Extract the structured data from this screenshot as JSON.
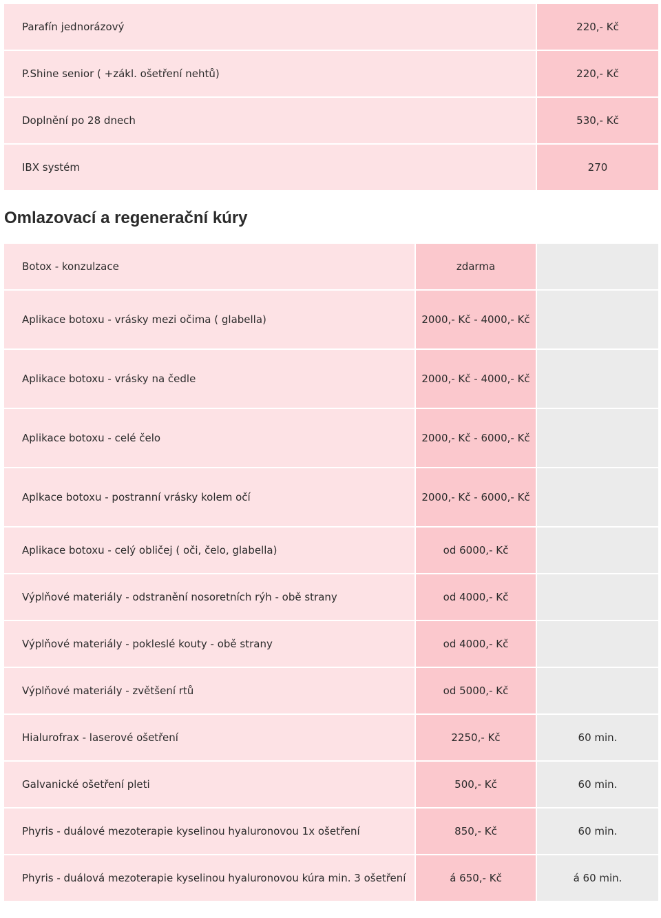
{
  "top_table": {
    "rows": [
      {
        "name": "Parafín jednorázový",
        "price": "220,- Kč"
      },
      {
        "name": "P.Shine senior ( +zákl. ošetření nehtů)",
        "price": "220,- Kč"
      },
      {
        "name": "Doplnění po 28 dnech",
        "price": "530,- Kč"
      },
      {
        "name": "IBX systém",
        "price": "270"
      }
    ]
  },
  "section": {
    "title": "Omlazovací a regenerační kúry"
  },
  "main_table": {
    "rows": [
      {
        "name": "Botox - konzulzace",
        "price": "zdarma",
        "time": ""
      },
      {
        "name": "Aplikace botoxu - vrásky mezi očima ( glabella)",
        "price": "2000,- Kč - 4000,- Kč",
        "time": ""
      },
      {
        "name": "Aplikace botoxu - vrásky na čedle",
        "price": "2000,- Kč - 4000,- Kč",
        "time": ""
      },
      {
        "name": "Aplikace botoxu - celé čelo",
        "price": "2000,- Kč - 6000,- Kč",
        "time": ""
      },
      {
        "name": "Aplkace botoxu - postranní vrásky kolem očí",
        "price": "2000,- Kč - 6000,- Kč",
        "time": ""
      },
      {
        "name": "Aplikace botoxu - celý obličej ( oči, čelo, glabella)",
        "price": "od 6000,- Kč",
        "time": ""
      },
      {
        "name": "Výplňové materiály - odstranění nosoretních rýh - obě strany",
        "price": "od 4000,- Kč",
        "time": ""
      },
      {
        "name": "Výplňové materiály - pokleslé kouty - obě strany",
        "price": "od 4000,- Kč",
        "time": ""
      },
      {
        "name": "Výplňové materiály - zvětšení rtů",
        "price": "od 5000,- Kč",
        "time": ""
      },
      {
        "name": "Hialurofrax - laserové ošetření",
        "price": "2250,- Kč",
        "time": "60 min."
      },
      {
        "name": "Galvanické ošetření pleti",
        "price": "500,- Kč",
        "time": "60 min."
      },
      {
        "name": "Phyris - duálové mezoterapie kyselinou hyaluronovou 1x ošetření",
        "price": "850,- Kč",
        "time": "60 min."
      },
      {
        "name": "Phyris - duálová mezoterapie kyselinou hyaluronovou kúra min. 3 ošetření",
        "price": "á 650,- Kč",
        "time": "á 60 min."
      }
    ]
  }
}
